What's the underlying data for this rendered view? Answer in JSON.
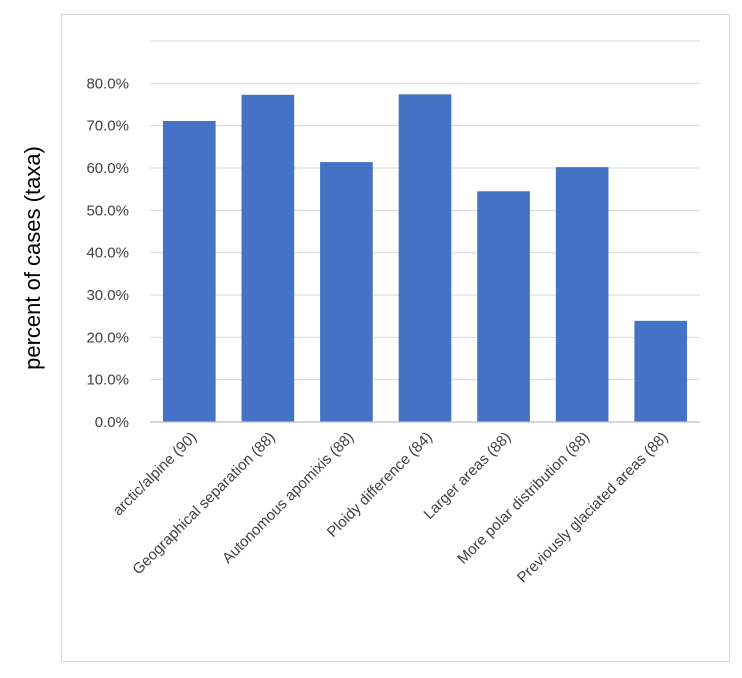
{
  "chart_data": {
    "type": "bar",
    "title": "",
    "xlabel": "",
    "ylabel": "percent of cases (taxa)",
    "ylim": [
      0,
      90
    ],
    "yticks": [
      0,
      10,
      20,
      30,
      40,
      50,
      60,
      70,
      80
    ],
    "ytick_labels": [
      "0.0%",
      "10.0%",
      "20.0%",
      "30.0%",
      "40.0%",
      "50.0%",
      "60.0%",
      "70.0%",
      "80.0%"
    ],
    "grid": true,
    "legend": "none",
    "categories": [
      "arctic/alpine (90)",
      "Geographical separation (88)",
      "Autonomous apomixis (88)",
      "Ploidy difference (84)",
      "Larger areas (88)",
      "More polar distribution (88)",
      "Previously glaciated areas (88)"
    ],
    "values": [
      71.1,
      77.3,
      61.4,
      77.4,
      54.5,
      60.2,
      23.9
    ],
    "colors": {
      "bar": "#4472c4",
      "grid": "#d9d9d9",
      "axis": "#bfbfbf",
      "frame": "#d9d9d9"
    }
  }
}
